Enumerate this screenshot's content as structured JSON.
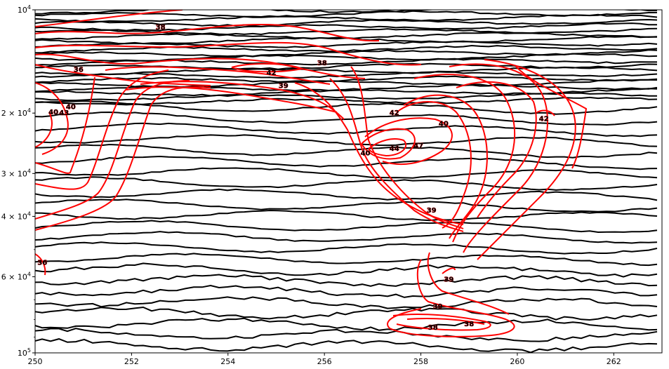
{
  "chart_data": {
    "type": "contour",
    "title": "",
    "xlabel": "",
    "ylabel": "",
    "xlim": [
      250,
      263
    ],
    "ylim": [
      100000,
      10000
    ],
    "yscale": "log",
    "y_inverted": true,
    "grid": false,
    "x_ticks": [
      250,
      252,
      254,
      256,
      258,
      260,
      262
    ],
    "x_tick_labels": [
      "250",
      "252",
      "254",
      "256",
      "258",
      "260",
      "262"
    ],
    "y_ticks": [
      10000,
      20000,
      30000,
      40000,
      60000,
      100000
    ],
    "y_tick_labels": [
      {
        "base": "10",
        "exp": "4"
      },
      {
        "base": "2 × 10",
        "exp": "4"
      },
      {
        "base": "3 × 10",
        "exp": "4"
      },
      {
        "base": "4 × 10",
        "exp": "4"
      },
      {
        "base": "6 × 10",
        "exp": "4"
      },
      {
        "base": "10",
        "exp": "5"
      }
    ],
    "black_contour_color": "#000000",
    "red_contour_color": "#ff0000",
    "contour_labels": [
      {
        "text": "38",
        "x": 252.6,
        "y": 11200
      },
      {
        "text": "36",
        "x": 250.9,
        "y": 14900
      },
      {
        "text": "38",
        "x": 255.95,
        "y": 14250
      },
      {
        "text": "42",
        "x": 254.9,
        "y": 15200
      },
      {
        "text": "39",
        "x": 255.15,
        "y": 16600
      },
      {
        "text": "40",
        "x": 250.38,
        "y": 19800
      },
      {
        "text": "43",
        "x": 250.6,
        "y": 19900
      },
      {
        "text": "40",
        "x": 250.74,
        "y": 19100
      },
      {
        "text": "42",
        "x": 257.45,
        "y": 19900
      },
      {
        "text": "40",
        "x": 258.47,
        "y": 21400
      },
      {
        "text": "42",
        "x": 260.55,
        "y": 20700
      },
      {
        "text": "44",
        "x": 257.45,
        "y": 25300
      },
      {
        "text": "47",
        "x": 257.95,
        "y": 24800
      },
      {
        "text": "40",
        "x": 256.85,
        "y": 26100
      },
      {
        "text": "39",
        "x": 258.22,
        "y": 38300
      },
      {
        "text": "36",
        "x": 250.15,
        "y": 54400
      },
      {
        "text": "39",
        "x": 258.58,
        "y": 60900
      },
      {
        "text": "39",
        "x": 258.35,
        "y": 72900
      },
      {
        "text": "38",
        "x": 259.0,
        "y": 82000
      },
      {
        "text": "38",
        "x": 258.25,
        "y": 84000
      }
    ]
  }
}
